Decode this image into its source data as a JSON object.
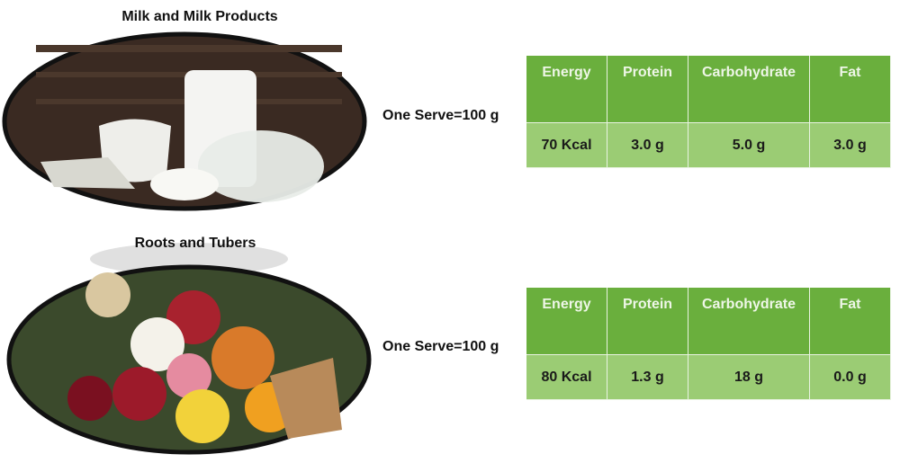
{
  "sections": [
    {
      "title": "Milk and Milk Products",
      "serving": "One Serve=100 g",
      "table": {
        "header": [
          "Energy",
          "Protein",
          "Carbohydrate",
          "Fat"
        ],
        "rows": [
          [
            "70 Kcal",
            "3.0 g",
            "5.0 g",
            "3.0 g"
          ]
        ]
      }
    },
    {
      "title": "Roots and Tubers",
      "serving": "One Serve=100 g",
      "table": {
        "header": [
          "Energy",
          "Protein",
          "Carbohydrate",
          "Fat"
        ],
        "rows": [
          [
            "80 Kcal",
            "1.3 g",
            "18 g",
            "0.0 g"
          ]
        ]
      }
    }
  ]
}
